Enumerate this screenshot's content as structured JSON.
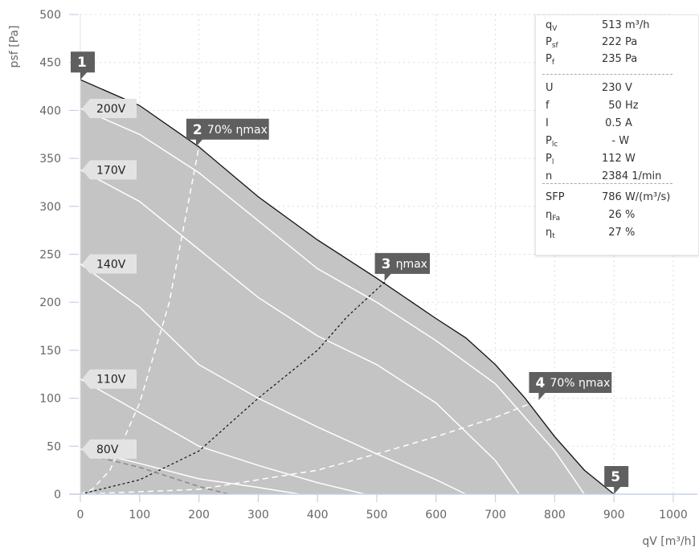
{
  "chart_data": {
    "type": "line",
    "xlabel": "qV [m³/h]",
    "ylabel": "psf [Pa]",
    "xlim": [
      0,
      1000
    ],
    "ylim": [
      0,
      500
    ],
    "x_ticks": [
      0,
      100,
      200,
      300,
      400,
      500,
      600,
      700,
      800,
      900,
      1000
    ],
    "y_ticks": [
      0,
      50,
      100,
      150,
      200,
      250,
      300,
      350,
      400,
      450,
      500
    ],
    "grid": true,
    "envelope": {
      "x": [
        0,
        100,
        200,
        300,
        400,
        500,
        600,
        650,
        700,
        750,
        800,
        850,
        900
      ],
      "y": [
        432,
        405,
        362,
        310,
        265,
        225,
        183,
        163,
        135,
        100,
        60,
        25,
        0
      ]
    },
    "speed_curves": [
      {
        "label": "200V",
        "label_y": 402,
        "x": [
          0,
          100,
          200,
          300,
          400,
          500,
          600,
          700,
          800,
          850
        ],
        "y": [
          402,
          375,
          335,
          285,
          235,
          200,
          160,
          115,
          45,
          0
        ]
      },
      {
        "label": "170V",
        "label_y": 338,
        "x": [
          0,
          100,
          200,
          300,
          400,
          500,
          600,
          700,
          740
        ],
        "y": [
          338,
          305,
          255,
          205,
          165,
          135,
          95,
          35,
          0
        ]
      },
      {
        "label": "140V",
        "label_y": 240,
        "x": [
          0,
          100,
          200,
          300,
          400,
          500,
          600,
          650
        ],
        "y": [
          240,
          195,
          135,
          100,
          70,
          42,
          15,
          0
        ]
      },
      {
        "label": "110V",
        "label_y": 120,
        "x": [
          0,
          100,
          200,
          300,
          400,
          480
        ],
        "y": [
          120,
          85,
          50,
          30,
          12,
          0
        ]
      },
      {
        "label": "80V",
        "label_y": 47,
        "x": [
          0,
          100,
          200,
          300,
          370
        ],
        "y": [
          47,
          32,
          16,
          7,
          0
        ]
      }
    ],
    "reference_curves": [
      {
        "name": "70% ηmax",
        "style": "white-dashed",
        "x": [
          0,
          20,
          50,
          100,
          150,
          200
        ],
        "y": [
          0,
          5,
          25,
          95,
          200,
          362
        ]
      },
      {
        "name": "ηmax",
        "style": "black-dashed",
        "x": [
          0,
          100,
          200,
          300,
          400,
          450,
          515
        ],
        "y": [
          0,
          15,
          45,
          100,
          150,
          185,
          222
        ]
      },
      {
        "name": "70% ηmax",
        "style": "white-dashed",
        "x": [
          0,
          200,
          400,
          500,
          600,
          700,
          773
        ],
        "y": [
          0,
          5,
          25,
          42,
          60,
          80,
          98
        ]
      },
      {
        "name": "",
        "style": "gray-dashed",
        "x": [
          20,
          100,
          150,
          200,
          250
        ],
        "y": [
          40,
          28,
          18,
          8,
          0
        ]
      }
    ],
    "points": [
      {
        "num": "1",
        "text": "",
        "x": 0,
        "y": 432
      },
      {
        "num": "2",
        "text": "70% ηmax",
        "x": 195,
        "y": 362
      },
      {
        "num": "3",
        "text": "ηmax",
        "x": 513,
        "y": 222
      },
      {
        "num": "4",
        "text": "70% ηmax",
        "x": 773,
        "y": 98
      },
      {
        "num": "5",
        "text": "",
        "x": 900,
        "y": 0
      }
    ],
    "colors": {
      "envelope_fill": "#c4c4c4",
      "tag_bg": "#5f5f5f",
      "label_bg": "#e3e3e3",
      "axis": "#c8d1e0",
      "grid": "#dcdcdc"
    }
  },
  "info_panel": {
    "rows": [
      {
        "sym": "q",
        "sub": "V",
        "value": "513 m³/h"
      },
      {
        "sym": "P",
        "sub": "sf",
        "value": "222 Pa"
      },
      {
        "sym": "P",
        "sub": "f",
        "value": "235 Pa"
      },
      {
        "sym": "U",
        "sub": "",
        "value": "230 V"
      },
      {
        "sym": "f",
        "sub": "",
        "value": "  50 Hz"
      },
      {
        "sym": "I",
        "sub": "",
        "value": " 0.5 A"
      },
      {
        "sym": "P",
        "sub": "lc",
        "value": "   - W"
      },
      {
        "sym": "P",
        "sub": "l",
        "value": "112 W"
      },
      {
        "sym": "n",
        "sub": "",
        "value": "2384 1/min"
      },
      {
        "sym": "SFP",
        "sub": "",
        "value": "786 W/(m³/s)"
      },
      {
        "sym": "η",
        "sub": "Fa",
        "value": "  26 %"
      },
      {
        "sym": "η",
        "sub": "t",
        "value": "  27 %"
      }
    ]
  }
}
